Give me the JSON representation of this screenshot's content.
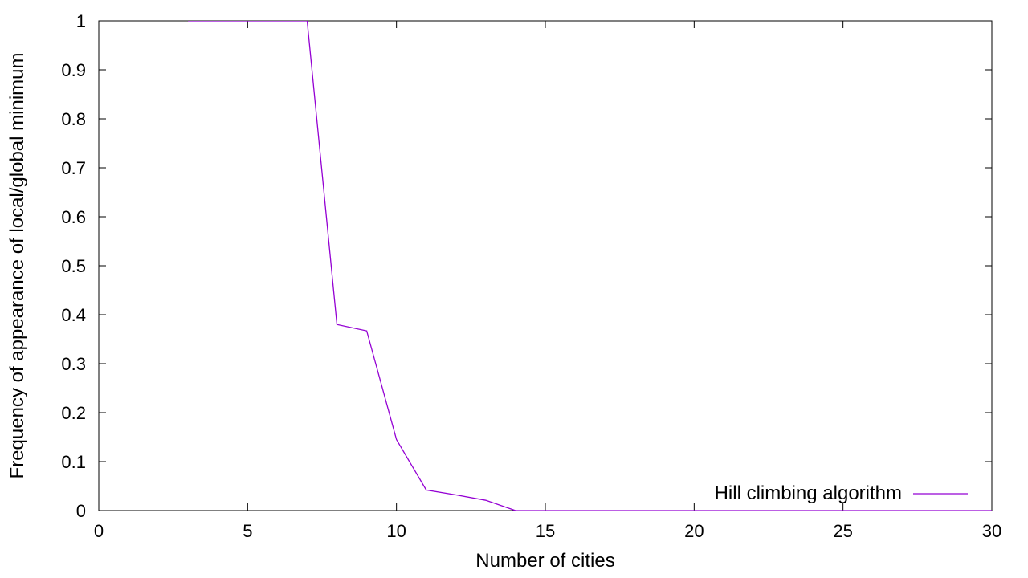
{
  "chart_data": {
    "type": "line",
    "xlabel": "Number of cities",
    "ylabel": "Frequency of appearance of local/global minimum",
    "xlim": [
      0,
      30
    ],
    "ylim": [
      0,
      1
    ],
    "xticks": [
      0,
      5,
      10,
      15,
      20,
      25,
      30
    ],
    "xtick_labels": [
      "0",
      "5",
      "10",
      "15",
      "20",
      "25",
      "30"
    ],
    "yticks": [
      0,
      0.1,
      0.2,
      0.3,
      0.4,
      0.5,
      0.6,
      0.7,
      0.8,
      0.9,
      1
    ],
    "ytick_labels": [
      "0",
      "0.1",
      "0.2",
      "0.3",
      "0.4",
      "0.5",
      "0.6",
      "0.7",
      "0.8",
      "0.9",
      "1"
    ],
    "grid": false,
    "legend_position": "bottom-right",
    "series": [
      {
        "name": "Hill climbing algorithm",
        "color": "#9400d3",
        "x": [
          3,
          4,
          5,
          6,
          7,
          8,
          9,
          10,
          11,
          12,
          13,
          14,
          15,
          16,
          17,
          18,
          19,
          20,
          21,
          22,
          23,
          24,
          25,
          26,
          27,
          28,
          29,
          30
        ],
        "y": [
          1,
          1,
          1,
          1,
          1,
          0.38,
          0.367,
          0.145,
          0.042,
          0.032,
          0.021,
          0.0,
          0.0,
          0.0,
          0.0,
          0.0,
          0.0,
          0.0,
          0.0,
          0.0,
          0.0,
          0.0,
          0.0,
          0.0,
          0.0,
          0.0,
          0.0,
          0.0
        ]
      }
    ]
  }
}
